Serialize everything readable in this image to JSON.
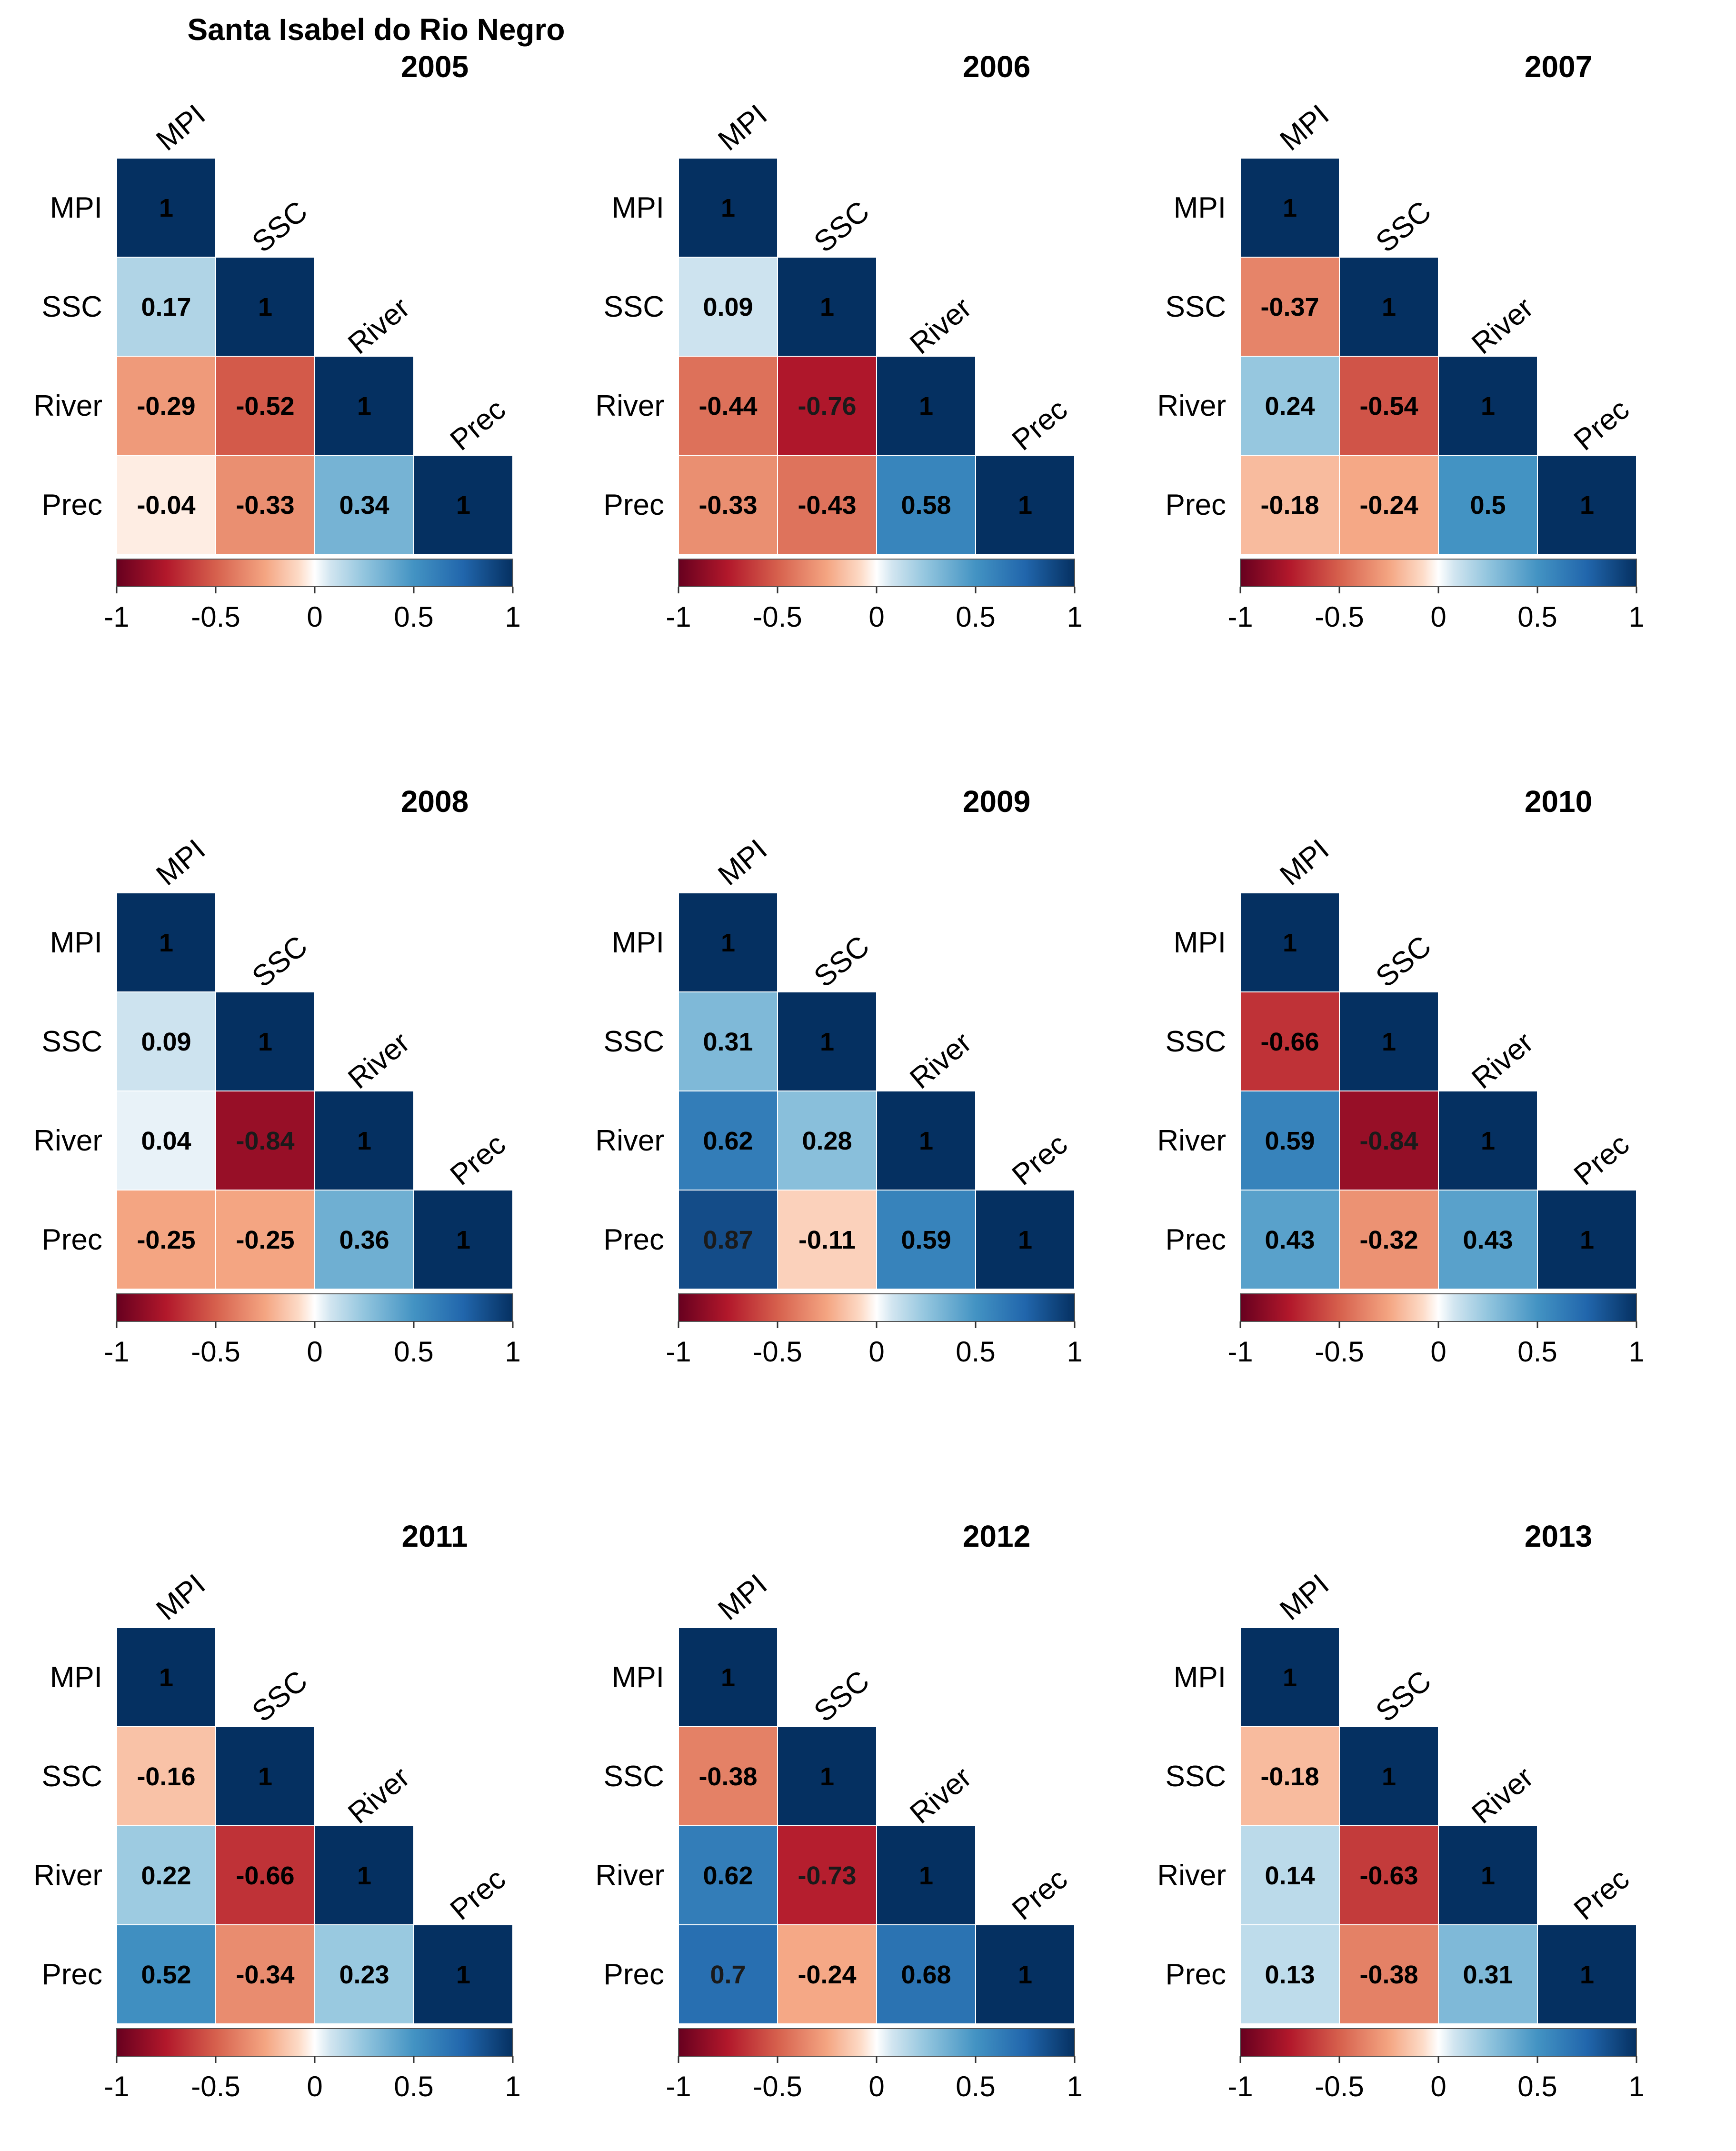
{
  "chart_data": {
    "type": "heatmap",
    "title": "Santa Isabel do Rio Negro",
    "variables": [
      "MPI",
      "SSC",
      "River",
      "Prec"
    ],
    "colorbar": {
      "range": [
        -1,
        1
      ],
      "ticks": [
        "-1",
        "-0.5",
        "0",
        "0.5",
        "1"
      ],
      "low_color": "#67001F",
      "mid_color": "#FFFFFF",
      "high_color": "#053061"
    },
    "panels": [
      {
        "year": "2005",
        "lower_triangle": [
          [
            "1"
          ],
          [
            "0.17",
            "1"
          ],
          [
            "-0.29",
            "-0.52",
            "1"
          ],
          [
            "-0.04",
            "-0.33",
            "0.34",
            "1"
          ]
        ]
      },
      {
        "year": "2006",
        "lower_triangle": [
          [
            "1"
          ],
          [
            "0.09",
            "1"
          ],
          [
            "-0.44",
            "-0.76",
            "1"
          ],
          [
            "-0.33",
            "-0.43",
            "0.58",
            "1"
          ]
        ]
      },
      {
        "year": "2007",
        "lower_triangle": [
          [
            "1"
          ],
          [
            "-0.37",
            "1"
          ],
          [
            "0.24",
            "-0.54",
            "1"
          ],
          [
            "-0.18",
            "-0.24",
            "0.5",
            "1"
          ]
        ]
      },
      {
        "year": "2008",
        "lower_triangle": [
          [
            "1"
          ],
          [
            "0.09",
            "1"
          ],
          [
            "0.04",
            "-0.84",
            "1"
          ],
          [
            "-0.25",
            "-0.25",
            "0.36",
            "1"
          ]
        ]
      },
      {
        "year": "2009",
        "lower_triangle": [
          [
            "1"
          ],
          [
            "0.31",
            "1"
          ],
          [
            "0.62",
            "0.28",
            "1"
          ],
          [
            "0.87",
            "-0.11",
            "0.59",
            "1"
          ]
        ]
      },
      {
        "year": "2010",
        "lower_triangle": [
          [
            "1"
          ],
          [
            "-0.66",
            "1"
          ],
          [
            "0.59",
            "-0.84",
            "1"
          ],
          [
            "0.43",
            "-0.32",
            "0.43",
            "1"
          ]
        ]
      },
      {
        "year": "2011",
        "lower_triangle": [
          [
            "1"
          ],
          [
            "-0.16",
            "1"
          ],
          [
            "0.22",
            "-0.66",
            "1"
          ],
          [
            "0.52",
            "-0.34",
            "0.23",
            "1"
          ]
        ]
      },
      {
        "year": "2012",
        "lower_triangle": [
          [
            "1"
          ],
          [
            "-0.38",
            "1"
          ],
          [
            "0.62",
            "-0.73",
            "1"
          ],
          [
            "0.7",
            "-0.24",
            "0.68",
            "1"
          ]
        ]
      },
      {
        "year": "2013",
        "lower_triangle": [
          [
            "1"
          ],
          [
            "-0.18",
            "1"
          ],
          [
            "0.14",
            "-0.63",
            "1"
          ],
          [
            "0.13",
            "-0.38",
            "0.31",
            "1"
          ]
        ]
      }
    ]
  }
}
